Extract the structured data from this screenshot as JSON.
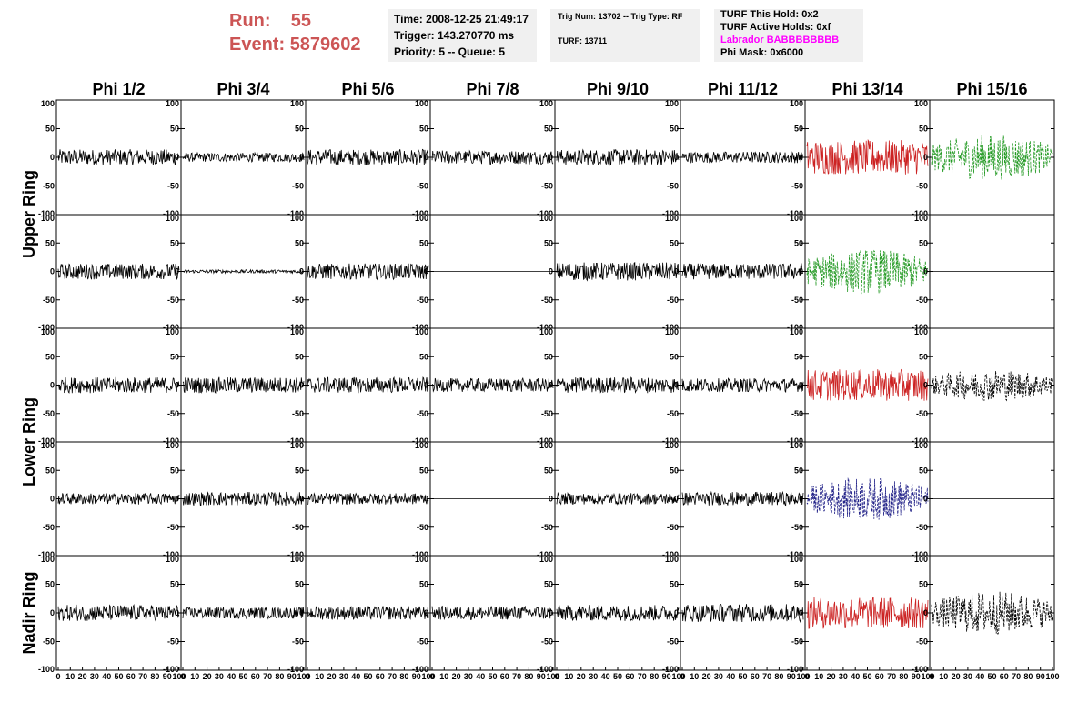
{
  "header": {
    "run_label": "Run:",
    "run_value": "55",
    "event_label": "Event:",
    "event_value": "5879602",
    "time_text": "Time: 2008-12-25 21:49:17",
    "trigger_text": "Trigger: 143.270770 ms",
    "priority_text": "Priority: 5 -- Queue: 5",
    "trig_num_text": "Trig Num: 13702 -- Trig Type: RF",
    "turf_text": "TURF: 13711",
    "turf_this_hold": "TURF This Hold: 0x2",
    "turf_active_holds": "TURF Active Holds: 0xf",
    "labrador_text": "Labrador BABBBBBBBB",
    "phi_mask_text": "Phi Mask: 0x6000"
  },
  "chart_data": {
    "type": "line",
    "columns": [
      "Phi 1/2",
      "Phi 3/4",
      "Phi 5/6",
      "Phi 7/8",
      "Phi 9/10",
      "Phi 11/12",
      "Phi 13/14",
      "Phi 15/16"
    ],
    "row_groups": [
      {
        "label": "Upper Ring",
        "rows": [
          0,
          1
        ]
      },
      {
        "label": "Lower Ring",
        "rows": [
          2,
          3
        ]
      },
      {
        "label": "Nadir Ring",
        "rows": [
          4
        ]
      }
    ],
    "xlim": [
      0,
      100
    ],
    "ylim": [
      -100,
      100
    ],
    "x_ticks": [
      "0",
      "10",
      "20",
      "30",
      "40",
      "50",
      "60",
      "70",
      "80",
      "90",
      "100"
    ],
    "y_ticks": [
      "100",
      "50",
      "0",
      "-50",
      "-100"
    ],
    "colors": {
      "normal": "#000000",
      "red": "#cc2222",
      "green": "#229922",
      "blue": "#222288",
      "magenta": "#ff00ff",
      "header_red": "#cc5555"
    },
    "panels": [
      [
        {
          "amp": 14,
          "color": "normal",
          "style": "solid"
        },
        {
          "amp": 8,
          "color": "normal",
          "style": "solid"
        },
        {
          "amp": 14,
          "color": "normal",
          "style": "solid"
        },
        {
          "amp": 12,
          "color": "normal",
          "style": "solid"
        },
        {
          "amp": 14,
          "color": "normal",
          "style": "solid"
        },
        {
          "amp": 10,
          "color": "normal",
          "style": "solid"
        },
        {
          "amp": 30,
          "color": "red",
          "style": "solid"
        },
        {
          "amp": 40,
          "color": "green",
          "style": "dashed"
        }
      ],
      [
        {
          "amp": 14,
          "color": "normal",
          "style": "solid"
        },
        {
          "amp": 3,
          "color": "normal",
          "style": "solid"
        },
        {
          "amp": 14,
          "color": "normal",
          "style": "solid"
        },
        {
          "amp": 0,
          "color": "normal",
          "style": "solid"
        },
        {
          "amp": 16,
          "color": "normal",
          "style": "solid"
        },
        {
          "amp": 14,
          "color": "normal",
          "style": "solid"
        },
        {
          "amp": 40,
          "color": "green",
          "style": "dashed"
        },
        {
          "amp": 0,
          "color": "normal",
          "style": "solid"
        }
      ],
      [
        {
          "amp": 14,
          "color": "normal",
          "style": "solid"
        },
        {
          "amp": 14,
          "color": "normal",
          "style": "solid"
        },
        {
          "amp": 14,
          "color": "normal",
          "style": "solid"
        },
        {
          "amp": 12,
          "color": "normal",
          "style": "solid"
        },
        {
          "amp": 14,
          "color": "normal",
          "style": "solid"
        },
        {
          "amp": 12,
          "color": "normal",
          "style": "solid"
        },
        {
          "amp": 28,
          "color": "red",
          "style": "solid"
        },
        {
          "amp": 28,
          "color": "normal",
          "style": "dashed"
        }
      ],
      [
        {
          "amp": 10,
          "color": "normal",
          "style": "solid"
        },
        {
          "amp": 12,
          "color": "normal",
          "style": "solid"
        },
        {
          "amp": 10,
          "color": "normal",
          "style": "solid"
        },
        {
          "amp": 0,
          "color": "normal",
          "style": "solid"
        },
        {
          "amp": 10,
          "color": "normal",
          "style": "solid"
        },
        {
          "amp": 12,
          "color": "normal",
          "style": "solid"
        },
        {
          "amp": 38,
          "color": "blue",
          "style": "dashed"
        },
        {
          "amp": 0,
          "color": "normal",
          "style": "solid"
        }
      ],
      [
        {
          "amp": 14,
          "color": "normal",
          "style": "solid"
        },
        {
          "amp": 10,
          "color": "normal",
          "style": "solid"
        },
        {
          "amp": 12,
          "color": "normal",
          "style": "solid"
        },
        {
          "amp": 12,
          "color": "normal",
          "style": "solid"
        },
        {
          "amp": 14,
          "color": "normal",
          "style": "solid"
        },
        {
          "amp": 16,
          "color": "normal",
          "style": "solid"
        },
        {
          "amp": 28,
          "color": "red",
          "style": "solid"
        },
        {
          "amp": 38,
          "color": "normal",
          "style": "dashed"
        }
      ]
    ]
  }
}
